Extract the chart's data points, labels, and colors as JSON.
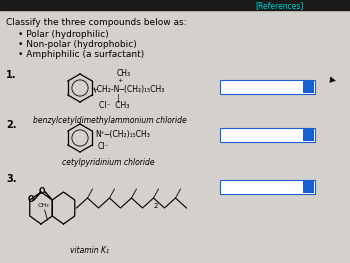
{
  "bg_color": "#d4d0cb",
  "header_bar_color": "#1a1a1a",
  "header_text": "[References]",
  "header_text_color": "#00d4d4",
  "header_font_size": 5.5,
  "title": "Classify the three compounds below as:",
  "title_font_size": 6.5,
  "bullets": [
    "Polar (hydrophilic)",
    "Non-polar (hydrophobic)",
    "Amphiphilic (a surfactant)"
  ],
  "bullet_font_size": 6.5,
  "compound1_name": "benzylcetyldimethylammonium chloride",
  "compound2_name": "cetylpyridinium chloride",
  "compound3_name": "vitamin K₁",
  "answer_box_color": "#1a5fcc",
  "label_font_size": 7,
  "name_font_size": 5.5,
  "page_bg": "#d4d0cb"
}
